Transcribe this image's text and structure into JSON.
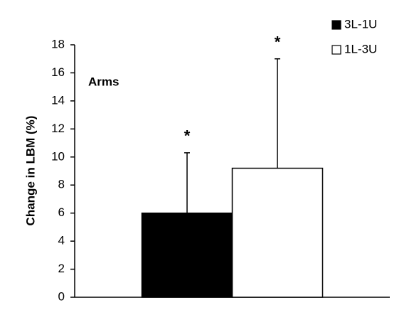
{
  "chart_data": {
    "type": "bar",
    "ylabel": "Change in LBM (%)",
    "annotation": "Arms",
    "categories": [
      null
    ],
    "series": [
      {
        "name": "3L-1U",
        "color": "#000000",
        "values": [
          6
        ],
        "errors": [
          4.3
        ],
        "marker": "*"
      },
      {
        "name": "1L-3U",
        "color": "#ffffff",
        "values": [
          9.2
        ],
        "errors": [
          7.8
        ],
        "marker": "*"
      }
    ],
    "ylim": [
      0,
      18
    ],
    "yticks": [
      0,
      2,
      4,
      6,
      8,
      10,
      12,
      14,
      16,
      18
    ],
    "grid": false,
    "legend": "upper right"
  }
}
